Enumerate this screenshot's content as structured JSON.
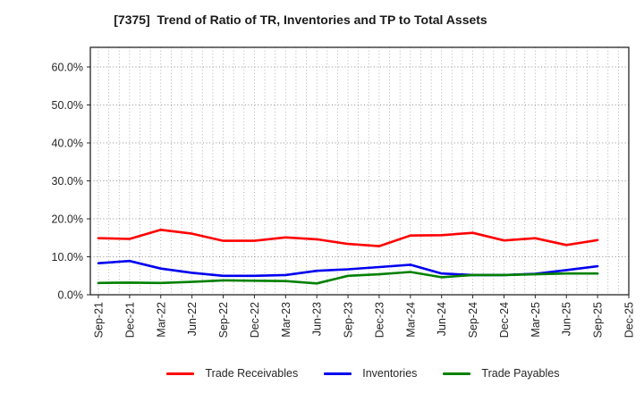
{
  "chart_data": {
    "type": "line",
    "title": "[7375]  Trend of Ratio of TR, Inventories and TP to Total Assets",
    "categories": [
      "Sep-21",
      "Dec-21",
      "Mar-22",
      "Jun-22",
      "Sep-22",
      "Dec-22",
      "Mar-23",
      "Jun-23",
      "Sep-23",
      "Dec-23",
      "Mar-24",
      "Jun-24",
      "Sep-24",
      "Dec-24",
      "Mar-25",
      "Jun-25",
      "Sep-25",
      "Dec-25"
    ],
    "series": [
      {
        "name": "Trade Receivables",
        "color": "#ff0000",
        "values": [
          14.9,
          14.7,
          17.1,
          16.1,
          14.2,
          14.2,
          15.1,
          14.6,
          13.4,
          12.8,
          15.6,
          15.7,
          16.3,
          14.3,
          14.9,
          13.1,
          14.4
        ]
      },
      {
        "name": "Inventories",
        "color": "#0000ee",
        "values": [
          8.3,
          8.9,
          6.9,
          5.8,
          5.0,
          5.0,
          5.2,
          6.3,
          6.7,
          7.3,
          7.9,
          5.6,
          5.2,
          5.2,
          5.5,
          6.5,
          7.5
        ]
      },
      {
        "name": "Trade Payables",
        "color": "#008000",
        "values": [
          3.1,
          3.2,
          3.1,
          3.4,
          3.8,
          3.7,
          3.6,
          3.0,
          5.0,
          5.4,
          6.0,
          4.6,
          5.2,
          5.2,
          5.4,
          5.6,
          5.6
        ]
      }
    ],
    "xlabel": "",
    "ylabel": "",
    "ylim": [
      0,
      65
    ],
    "yticks": [
      {
        "value": 0,
        "label": "0.0%"
      },
      {
        "value": 10,
        "label": "10.0%"
      },
      {
        "value": 20,
        "label": "20.0%"
      },
      {
        "value": 30,
        "label": "30.0%"
      },
      {
        "value": 40,
        "label": "40.0%"
      },
      {
        "value": 50,
        "label": "50.0%"
      },
      {
        "value": 60,
        "label": "60.0%"
      }
    ],
    "grid": "dotted; vertical monthly minor lines, horizontal every 10%",
    "legend_position": "bottom-horizontal",
    "axis_color": "#262626",
    "grid_color": "#a0a0a0"
  }
}
